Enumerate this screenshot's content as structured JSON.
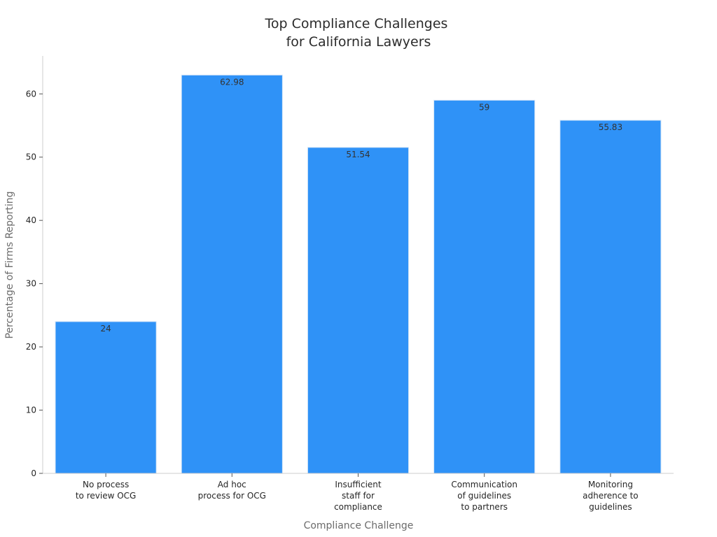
{
  "chart_data": {
    "type": "bar",
    "title": [
      "Top Compliance Challenges",
      "for California Lawyers"
    ],
    "xlabel": "Compliance Challenge",
    "ylabel": "Percentage of Firms Reporting",
    "categories": [
      [
        "No process",
        "to review OCG"
      ],
      [
        "Ad hoc",
        "process for OCG"
      ],
      [
        "Insufficient",
        "staff for",
        "compliance"
      ],
      [
        "Communication",
        "of guidelines",
        "to partners"
      ],
      [
        "Monitoring",
        "adherence to",
        "guidelines"
      ]
    ],
    "values": [
      24,
      62.98,
      51.54,
      59,
      55.83
    ],
    "data_labels": [
      "24",
      "62.98",
      "51.54",
      "59",
      "55.83"
    ],
    "yticks": [
      0,
      10,
      20,
      30,
      40,
      50,
      60
    ],
    "ylim": [
      0,
      66
    ],
    "grid": false,
    "colors": {
      "bar": "#2f92f7",
      "bar_edge": "#d6e6f7",
      "axis": "#cccccc"
    }
  }
}
